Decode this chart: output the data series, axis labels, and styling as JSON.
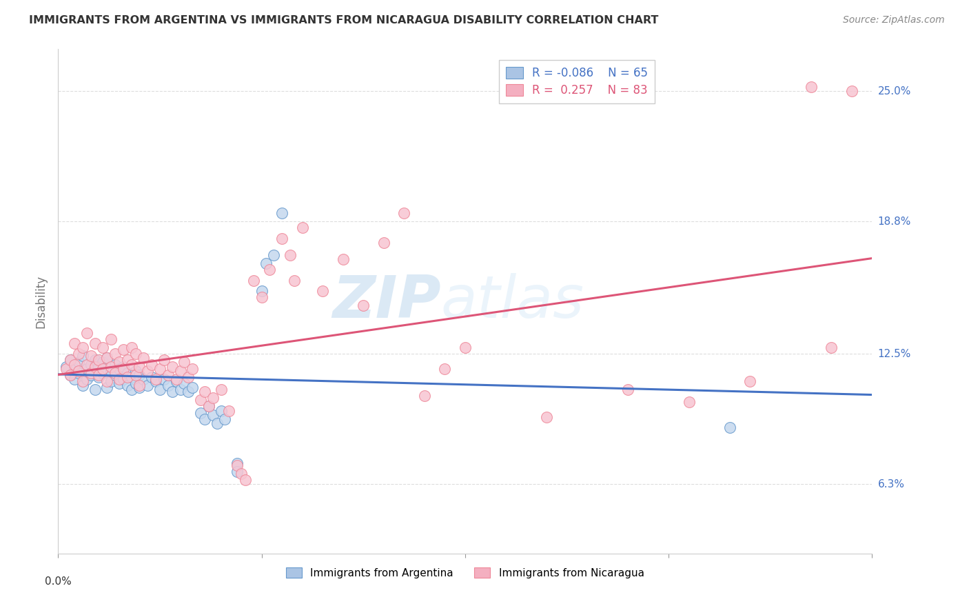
{
  "title": "IMMIGRANTS FROM ARGENTINA VS IMMIGRANTS FROM NICARAGUA DISABILITY CORRELATION CHART",
  "source": "Source: ZipAtlas.com",
  "ylabel": "Disability",
  "ytick_labels": [
    "6.3%",
    "12.5%",
    "18.8%",
    "25.0%"
  ],
  "ytick_values": [
    0.063,
    0.125,
    0.188,
    0.25
  ],
  "xlim": [
    0.0,
    0.2
  ],
  "ylim": [
    0.03,
    0.27
  ],
  "argentina_fill_color": "#c5d8ee",
  "nicaragua_fill_color": "#f7c5d2",
  "argentina_edge_color": "#6699cc",
  "nicaragua_edge_color": "#ee8899",
  "argentina_line_color": "#4472c4",
  "nicaragua_line_color": "#dd5577",
  "legend_R_argentina": "-0.086",
  "legend_N_argentina": "65",
  "legend_R_nicaragua": "0.257",
  "legend_N_nicaragua": "83",
  "legend_argentina_color": "#aac4e4",
  "legend_nicaragua_color": "#f4afc0",
  "argentina_points": [
    [
      0.002,
      0.119
    ],
    [
      0.003,
      0.122
    ],
    [
      0.003,
      0.115
    ],
    [
      0.004,
      0.118
    ],
    [
      0.004,
      0.113
    ],
    [
      0.005,
      0.121
    ],
    [
      0.005,
      0.116
    ],
    [
      0.006,
      0.124
    ],
    [
      0.006,
      0.11
    ],
    [
      0.007,
      0.118
    ],
    [
      0.007,
      0.113
    ],
    [
      0.008,
      0.12
    ],
    [
      0.008,
      0.115
    ],
    [
      0.009,
      0.122
    ],
    [
      0.009,
      0.108
    ],
    [
      0.01,
      0.119
    ],
    [
      0.01,
      0.114
    ],
    [
      0.011,
      0.121
    ],
    [
      0.011,
      0.116
    ],
    [
      0.012,
      0.123
    ],
    [
      0.012,
      0.109
    ],
    [
      0.013,
      0.117
    ],
    [
      0.013,
      0.112
    ],
    [
      0.014,
      0.12
    ],
    [
      0.014,
      0.115
    ],
    [
      0.015,
      0.118
    ],
    [
      0.015,
      0.111
    ],
    [
      0.016,
      0.119
    ],
    [
      0.016,
      0.113
    ],
    [
      0.017,
      0.116
    ],
    [
      0.017,
      0.11
    ],
    [
      0.018,
      0.114
    ],
    [
      0.018,
      0.108
    ],
    [
      0.019,
      0.117
    ],
    [
      0.019,
      0.111
    ],
    [
      0.02,
      0.115
    ],
    [
      0.02,
      0.109
    ],
    [
      0.021,
      0.113
    ],
    [
      0.022,
      0.11
    ],
    [
      0.023,
      0.114
    ],
    [
      0.024,
      0.112
    ],
    [
      0.025,
      0.108
    ],
    [
      0.026,
      0.113
    ],
    [
      0.027,
      0.11
    ],
    [
      0.028,
      0.107
    ],
    [
      0.029,
      0.112
    ],
    [
      0.03,
      0.108
    ],
    [
      0.031,
      0.111
    ],
    [
      0.032,
      0.107
    ],
    [
      0.033,
      0.109
    ],
    [
      0.035,
      0.097
    ],
    [
      0.036,
      0.094
    ],
    [
      0.037,
      0.1
    ],
    [
      0.038,
      0.096
    ],
    [
      0.039,
      0.092
    ],
    [
      0.04,
      0.098
    ],
    [
      0.041,
      0.094
    ],
    [
      0.044,
      0.073
    ],
    [
      0.044,
      0.069
    ],
    [
      0.05,
      0.155
    ],
    [
      0.051,
      0.168
    ],
    [
      0.053,
      0.172
    ],
    [
      0.055,
      0.192
    ],
    [
      0.165,
      0.09
    ]
  ],
  "nicaragua_points": [
    [
      0.002,
      0.118
    ],
    [
      0.003,
      0.122
    ],
    [
      0.003,
      0.115
    ],
    [
      0.004,
      0.13
    ],
    [
      0.004,
      0.12
    ],
    [
      0.005,
      0.117
    ],
    [
      0.005,
      0.125
    ],
    [
      0.006,
      0.112
    ],
    [
      0.006,
      0.128
    ],
    [
      0.007,
      0.12
    ],
    [
      0.007,
      0.135
    ],
    [
      0.008,
      0.116
    ],
    [
      0.008,
      0.124
    ],
    [
      0.009,
      0.119
    ],
    [
      0.009,
      0.13
    ],
    [
      0.01,
      0.122
    ],
    [
      0.01,
      0.115
    ],
    [
      0.011,
      0.118
    ],
    [
      0.011,
      0.128
    ],
    [
      0.012,
      0.123
    ],
    [
      0.012,
      0.112
    ],
    [
      0.013,
      0.119
    ],
    [
      0.013,
      0.132
    ],
    [
      0.014,
      0.125
    ],
    [
      0.014,
      0.116
    ],
    [
      0.015,
      0.121
    ],
    [
      0.015,
      0.113
    ],
    [
      0.016,
      0.127
    ],
    [
      0.016,
      0.118
    ],
    [
      0.017,
      0.122
    ],
    [
      0.017,
      0.114
    ],
    [
      0.018,
      0.128
    ],
    [
      0.018,
      0.12
    ],
    [
      0.019,
      0.115
    ],
    [
      0.019,
      0.125
    ],
    [
      0.02,
      0.119
    ],
    [
      0.02,
      0.11
    ],
    [
      0.021,
      0.123
    ],
    [
      0.022,
      0.117
    ],
    [
      0.023,
      0.12
    ],
    [
      0.024,
      0.113
    ],
    [
      0.025,
      0.118
    ],
    [
      0.026,
      0.122
    ],
    [
      0.027,
      0.115
    ],
    [
      0.028,
      0.119
    ],
    [
      0.029,
      0.113
    ],
    [
      0.03,
      0.117
    ],
    [
      0.031,
      0.121
    ],
    [
      0.032,
      0.114
    ],
    [
      0.033,
      0.118
    ],
    [
      0.035,
      0.103
    ],
    [
      0.036,
      0.107
    ],
    [
      0.037,
      0.1
    ],
    [
      0.038,
      0.104
    ],
    [
      0.04,
      0.108
    ],
    [
      0.042,
      0.098
    ],
    [
      0.044,
      0.072
    ],
    [
      0.045,
      0.068
    ],
    [
      0.046,
      0.065
    ],
    [
      0.048,
      0.16
    ],
    [
      0.05,
      0.152
    ],
    [
      0.052,
      0.165
    ],
    [
      0.055,
      0.18
    ],
    [
      0.057,
      0.172
    ],
    [
      0.058,
      0.16
    ],
    [
      0.06,
      0.185
    ],
    [
      0.065,
      0.155
    ],
    [
      0.07,
      0.17
    ],
    [
      0.075,
      0.148
    ],
    [
      0.08,
      0.178
    ],
    [
      0.085,
      0.192
    ],
    [
      0.09,
      0.105
    ],
    [
      0.095,
      0.118
    ],
    [
      0.1,
      0.128
    ],
    [
      0.12,
      0.095
    ],
    [
      0.14,
      0.108
    ],
    [
      0.155,
      0.102
    ],
    [
      0.17,
      0.112
    ],
    [
      0.185,
      0.252
    ],
    [
      0.19,
      0.128
    ],
    [
      0.195,
      0.25
    ]
  ],
  "watermark_text": "ZIP atlas",
  "watermark_color": "#c8dff0",
  "background_color": "#ffffff",
  "grid_color": "#dddddd"
}
